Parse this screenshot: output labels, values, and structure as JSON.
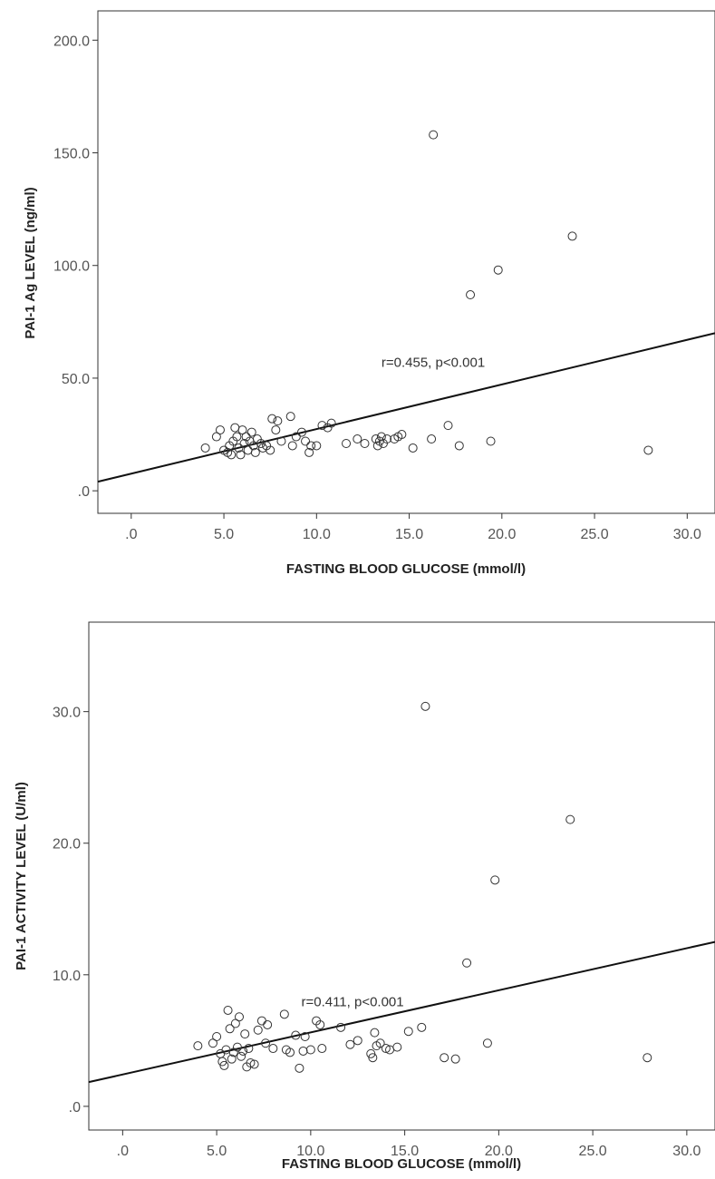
{
  "chart_data": [
    {
      "type": "scatter",
      "xlabel": "FASTING BLOOD GLUCOSE (mmol/l)",
      "ylabel": "PAI-1 Ag LEVEL (ng/ml)",
      "xlim": [
        -1.8,
        31.5
      ],
      "ylim": [
        -10,
        213
      ],
      "x_ticks": [
        ".0",
        "5.0",
        "10.0",
        "15.0",
        "20.0",
        "25.0",
        "30.0"
      ],
      "y_ticks": [
        ".0",
        "50.0",
        "100.0",
        "150.0",
        "200.0"
      ],
      "annotation": "r=0.455, p<0.001",
      "annotation_pos": [
        13.5,
        55
      ],
      "fit_line": {
        "intercept": 7.6,
        "slope": 1.98
      },
      "grid": false,
      "points": [
        [
          4.0,
          19
        ],
        [
          4.6,
          24
        ],
        [
          4.8,
          27
        ],
        [
          5.0,
          18
        ],
        [
          5.2,
          17
        ],
        [
          5.3,
          20
        ],
        [
          5.4,
          16
        ],
        [
          5.5,
          22
        ],
        [
          5.6,
          28
        ],
        [
          5.7,
          24
        ],
        [
          5.8,
          19
        ],
        [
          5.9,
          16
        ],
        [
          6.0,
          27
        ],
        [
          6.1,
          21
        ],
        [
          6.2,
          24
        ],
        [
          6.3,
          18
        ],
        [
          6.4,
          22
        ],
        [
          6.5,
          26
        ],
        [
          6.6,
          20
        ],
        [
          6.7,
          17
        ],
        [
          6.8,
          23
        ],
        [
          7.0,
          21
        ],
        [
          7.1,
          19
        ],
        [
          7.3,
          20
        ],
        [
          7.5,
          18
        ],
        [
          7.6,
          32
        ],
        [
          7.8,
          27
        ],
        [
          7.9,
          31
        ],
        [
          8.1,
          22
        ],
        [
          8.6,
          33
        ],
        [
          8.7,
          20
        ],
        [
          8.9,
          24
        ],
        [
          9.2,
          26
        ],
        [
          9.4,
          22
        ],
        [
          9.6,
          17
        ],
        [
          9.7,
          20
        ],
        [
          10.0,
          20
        ],
        [
          10.3,
          29
        ],
        [
          10.6,
          28
        ],
        [
          10.8,
          30
        ],
        [
          11.6,
          21
        ],
        [
          12.2,
          23
        ],
        [
          12.6,
          21
        ],
        [
          13.2,
          23
        ],
        [
          13.3,
          20
        ],
        [
          13.4,
          22
        ],
        [
          13.5,
          24
        ],
        [
          13.6,
          21
        ],
        [
          13.8,
          23
        ],
        [
          14.2,
          23
        ],
        [
          14.4,
          24
        ],
        [
          14.6,
          25
        ],
        [
          15.2,
          19
        ],
        [
          16.2,
          23
        ],
        [
          16.3,
          158
        ],
        [
          17.1,
          29
        ],
        [
          17.7,
          20
        ],
        [
          18.3,
          87
        ],
        [
          19.4,
          22
        ],
        [
          19.8,
          98
        ],
        [
          23.8,
          113
        ],
        [
          27.9,
          18
        ]
      ]
    },
    {
      "type": "scatter",
      "xlabel": "FASTING BLOOD GLUCOSE (mmol/l)",
      "ylabel": "PAI-1 ACTIVITY LEVEL (U/ml)",
      "xlim": [
        -1.8,
        31.5
      ],
      "ylim": [
        -1.8,
        36.8
      ],
      "x_ticks": [
        ".0",
        "5.0",
        "10.0",
        "15.0",
        "20.0",
        "25.0",
        "30.0"
      ],
      "y_ticks": [
        ".0",
        "10.0",
        "20.0",
        "30.0"
      ],
      "annotation": "r=0.411, p<0.001",
      "annotation_pos": [
        9.5,
        7.6
      ],
      "fit_line": {
        "intercept": 2.42,
        "slope": 0.32
      },
      "grid": false,
      "points": [
        [
          4.0,
          4.6
        ],
        [
          4.8,
          4.8
        ],
        [
          5.0,
          5.3
        ],
        [
          5.2,
          4.0
        ],
        [
          5.3,
          3.4
        ],
        [
          5.4,
          3.1
        ],
        [
          5.5,
          4.3
        ],
        [
          5.6,
          7.3
        ],
        [
          5.7,
          5.9
        ],
        [
          5.8,
          3.6
        ],
        [
          5.9,
          4.1
        ],
        [
          6.0,
          6.3
        ],
        [
          6.1,
          4.5
        ],
        [
          6.2,
          6.8
        ],
        [
          6.3,
          3.8
        ],
        [
          6.4,
          4.2
        ],
        [
          6.5,
          5.5
        ],
        [
          6.6,
          3.0
        ],
        [
          6.7,
          4.4
        ],
        [
          6.8,
          3.3
        ],
        [
          7.0,
          3.2
        ],
        [
          7.2,
          5.8
        ],
        [
          7.4,
          6.5
        ],
        [
          7.6,
          4.8
        ],
        [
          7.7,
          6.2
        ],
        [
          8.0,
          4.4
        ],
        [
          8.6,
          7.0
        ],
        [
          8.7,
          4.3
        ],
        [
          8.9,
          4.1
        ],
        [
          9.2,
          5.4
        ],
        [
          9.4,
          2.9
        ],
        [
          9.6,
          4.2
        ],
        [
          9.7,
          5.3
        ],
        [
          10.0,
          4.3
        ],
        [
          10.3,
          6.5
        ],
        [
          10.5,
          6.2
        ],
        [
          10.6,
          4.4
        ],
        [
          11.6,
          6.0
        ],
        [
          12.1,
          4.7
        ],
        [
          12.5,
          5.0
        ],
        [
          13.2,
          4.0
        ],
        [
          13.3,
          3.7
        ],
        [
          13.4,
          5.6
        ],
        [
          13.5,
          4.6
        ],
        [
          13.7,
          4.8
        ],
        [
          14.0,
          4.4
        ],
        [
          14.2,
          4.3
        ],
        [
          14.6,
          4.5
        ],
        [
          15.2,
          5.7
        ],
        [
          15.9,
          6.0
        ],
        [
          16.1,
          30.4
        ],
        [
          17.1,
          3.7
        ],
        [
          17.7,
          3.6
        ],
        [
          18.3,
          10.9
        ],
        [
          19.4,
          4.8
        ],
        [
          19.8,
          17.2
        ],
        [
          23.8,
          21.8
        ],
        [
          27.9,
          3.7
        ]
      ]
    }
  ]
}
